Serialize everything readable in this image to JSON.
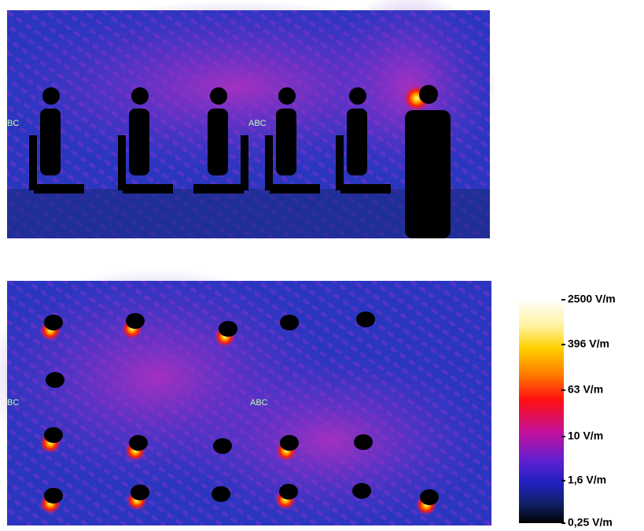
{
  "top_panel": {
    "labels": [
      "BC",
      "ABC"
    ]
  },
  "bottom_panel": {
    "labels": [
      "BC",
      "ABC"
    ]
  },
  "colorbar": {
    "labels": [
      "2500 V/m",
      "396 V/m",
      "63 V/m",
      "10  V/m",
      "1,6 V/m",
      "0,25 V/m"
    ]
  }
}
